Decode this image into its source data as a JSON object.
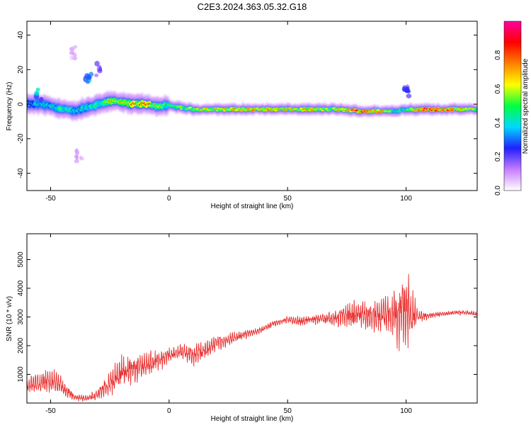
{
  "figure_title": "C2E3.2024.363.05.32.G18",
  "chart_data": [
    {
      "type": "heatmap",
      "xlabel": "Height of straight line (km)",
      "ylabel": "Frequency (Hz)",
      "xlim": [
        -60,
        130
      ],
      "ylim": [
        -50,
        48
      ],
      "xticks": [
        -50,
        0,
        50,
        100
      ],
      "yticks": [
        40,
        20,
        0,
        -20,
        -40
      ],
      "colorbar": {
        "label": "Normalized spectral amplitude",
        "range": [
          0,
          1
        ],
        "ticks": [
          "0.0",
          "0.2",
          "0.4",
          "0.6",
          "0.8"
        ],
        "colors": [
          "#ffffff",
          "#c77dff",
          "#2020ff",
          "#00d8ff",
          "#00ff40",
          "#ffff00",
          "#ff8000",
          "#ff0000",
          "#ff00a0"
        ]
      },
      "ridge": {
        "x": [
          -60,
          -55,
          -50,
          -45,
          -40,
          -35,
          -30,
          -25,
          -20,
          -15,
          -10,
          -5,
          0,
          5,
          10,
          20,
          30,
          40,
          50,
          60,
          70,
          80,
          90,
          95,
          100,
          105,
          110,
          120,
          130
        ],
        "freq": [
          0,
          0,
          -1,
          -3,
          -4,
          -2,
          0,
          2,
          1,
          0,
          0,
          -1,
          -1,
          -2,
          -3,
          -3,
          -3,
          -3,
          -3,
          -3,
          -3,
          -4,
          -4,
          -4,
          -3,
          -3,
          -3,
          -3,
          -3
        ],
        "amplitude": [
          0.3,
          0.45,
          0.45,
          0.55,
          0.4,
          0.45,
          0.55,
          0.7,
          0.7,
          0.75,
          0.8,
          0.6,
          0.5,
          0.55,
          0.6,
          0.65,
          0.65,
          0.7,
          0.65,
          0.65,
          0.6,
          0.85,
          0.7,
          0.5,
          0.45,
          0.8,
          0.85,
          0.7,
          0.6
        ]
      },
      "features": [
        {
          "x": -34,
          "freq": 15,
          "amplitude": 0.35
        },
        {
          "x": -30,
          "freq": 20,
          "amplitude": 0.2
        },
        {
          "x": -40,
          "freq": 30,
          "amplitude": 0.1
        },
        {
          "x": 100,
          "freq": 8,
          "amplitude": 0.3
        },
        {
          "x": -55,
          "freq": 5,
          "amplitude": 0.4
        },
        {
          "x": -38,
          "freq": -30,
          "amplitude": 0.1
        }
      ]
    },
    {
      "type": "line",
      "xlabel": "Height of straight line (km)",
      "ylabel": "SNR (10 * v/v)",
      "xlim": [
        -60,
        130
      ],
      "ylim": [
        0,
        5900
      ],
      "xticks": [
        -50,
        0,
        50,
        100
      ],
      "yticks": [
        1000,
        2000,
        3000,
        4000,
        5000
      ],
      "color": "#e83030",
      "series": [
        {
          "x": [
            -60,
            -55,
            -50,
            -45,
            -40,
            -35,
            -30,
            -25,
            -20,
            -15,
            -10,
            -5,
            0,
            5,
            10,
            15,
            20,
            25,
            30,
            35,
            40,
            45,
            50,
            55,
            60,
            65,
            70,
            75,
            80,
            85,
            90,
            95,
            100,
            105,
            110,
            115,
            120,
            125,
            130
          ],
          "values": [
            600,
            700,
            800,
            550,
            200,
            150,
            300,
            700,
            1100,
            1200,
            1300,
            1500,
            1650,
            1800,
            1700,
            1800,
            2100,
            2200,
            2350,
            2450,
            2600,
            2800,
            2900,
            2850,
            2900,
            2950,
            2950,
            3050,
            3100,
            3000,
            3000,
            3100,
            3200,
            3000,
            3050,
            3100,
            3150,
            3150,
            3100
          ],
          "noise": [
            250,
            350,
            450,
            300,
            120,
            100,
            200,
            450,
            550,
            450,
            400,
            350,
            250,
            250,
            350,
            300,
            250,
            200,
            150,
            150,
            100,
            120,
            120,
            150,
            150,
            200,
            250,
            400,
            500,
            500,
            600,
            900,
            1500,
            200,
            100,
            80,
            80,
            80,
            80
          ]
        }
      ]
    }
  ]
}
